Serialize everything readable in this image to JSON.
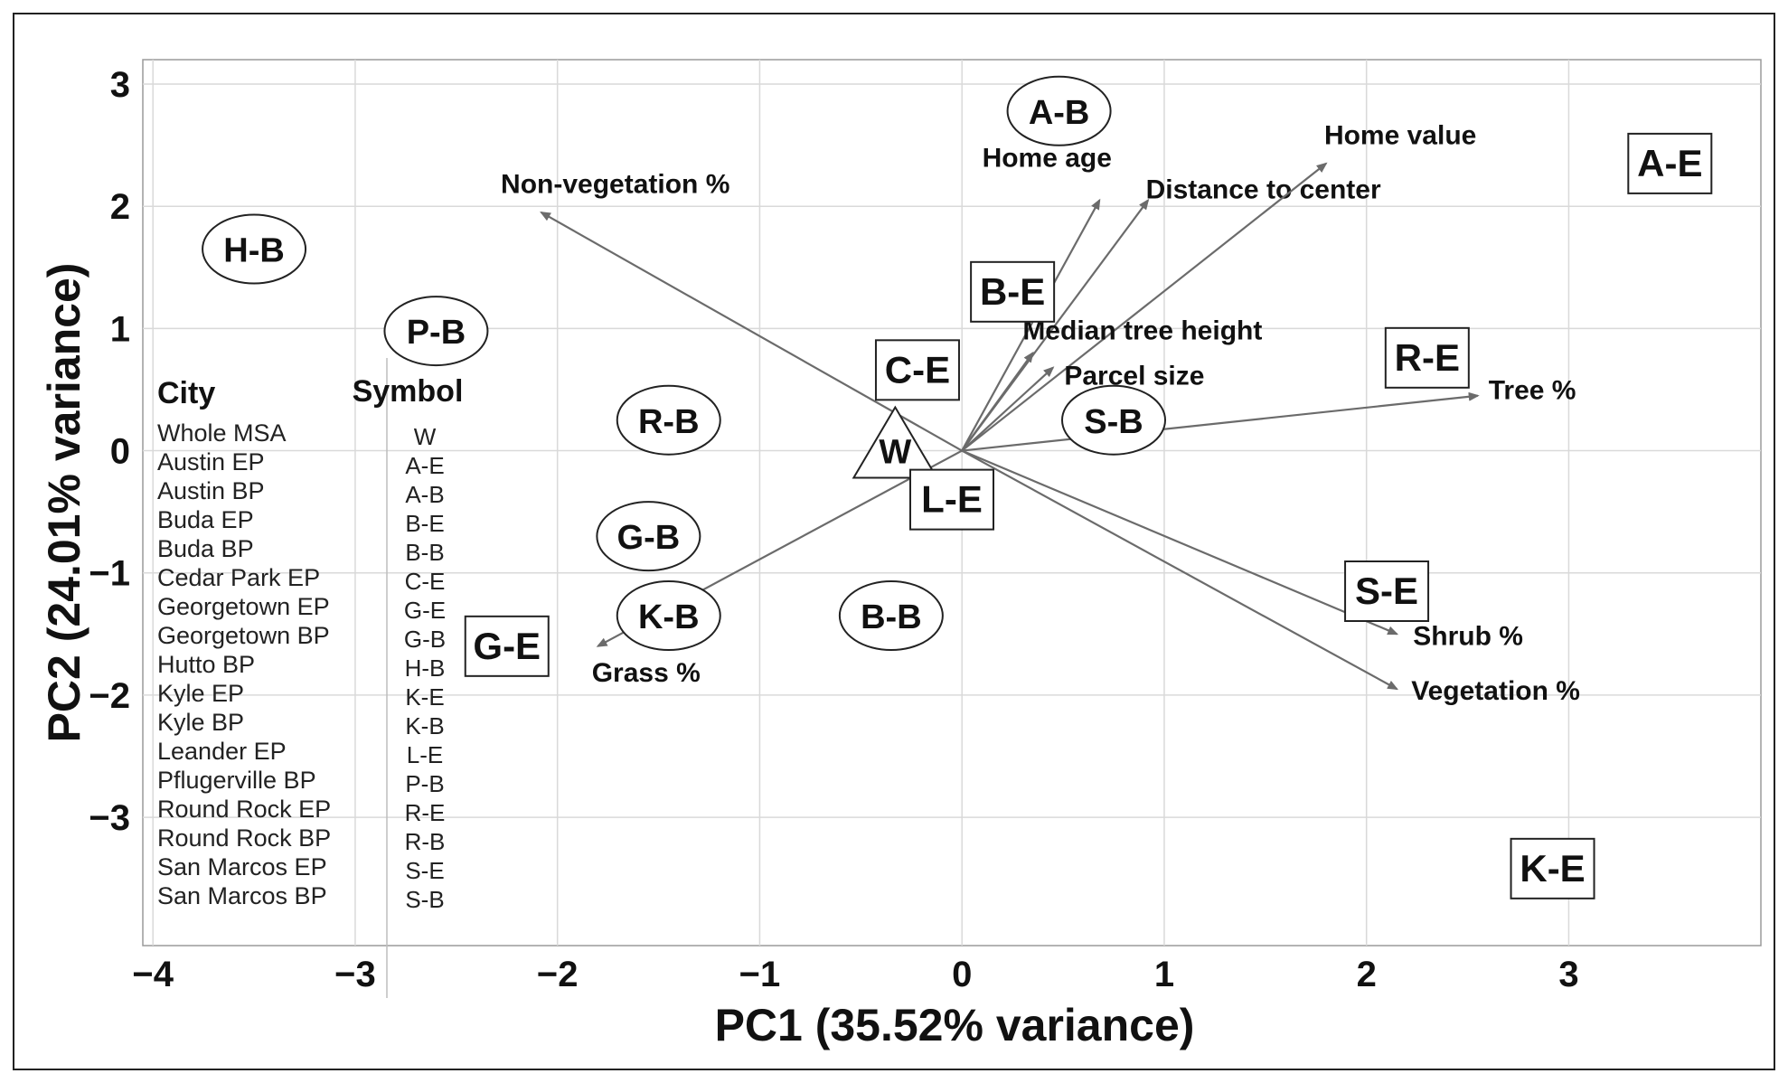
{
  "chart_data": {
    "type": "scatter",
    "subtype": "pca-biplot",
    "xlabel": "PC1 (35.52% variance)",
    "ylabel": "PC2 (24.01% variance)",
    "xlim": [
      -4.05,
      3.95
    ],
    "ylim": [
      -4.05,
      3.2
    ],
    "x_ticks": [
      {
        "value": -4,
        "label": "−4"
      },
      {
        "value": -3,
        "label": "−3"
      },
      {
        "value": -2,
        "label": "−2"
      },
      {
        "value": -1,
        "label": "−1"
      },
      {
        "value": 0,
        "label": "0"
      },
      {
        "value": 1,
        "label": "1"
      },
      {
        "value": 2,
        "label": "2"
      },
      {
        "value": 3,
        "label": "3"
      }
    ],
    "y_ticks": [
      {
        "value": 3,
        "label": "3"
      },
      {
        "value": 2,
        "label": "2"
      },
      {
        "value": 1,
        "label": "1"
      },
      {
        "value": 0,
        "label": "0"
      },
      {
        "value": -1,
        "label": "−1"
      },
      {
        "value": -2,
        "label": "−2"
      },
      {
        "value": -3,
        "label": "−3"
      }
    ],
    "grid": true,
    "points": [
      {
        "label": "A-B",
        "x": 0.48,
        "y": 2.78,
        "shape": "ellipse"
      },
      {
        "label": "A-E",
        "x": 3.5,
        "y": 2.35,
        "shape": "box"
      },
      {
        "label": "H-B",
        "x": -3.5,
        "y": 1.65,
        "shape": "ellipse"
      },
      {
        "label": "B-E",
        "x": 0.25,
        "y": 1.3,
        "shape": "box"
      },
      {
        "label": "P-B",
        "x": -2.6,
        "y": 0.98,
        "shape": "ellipse"
      },
      {
        "label": "C-E",
        "x": -0.22,
        "y": 0.66,
        "shape": "box"
      },
      {
        "label": "R-E",
        "x": 2.3,
        "y": 0.76,
        "shape": "box"
      },
      {
        "label": "R-B",
        "x": -1.45,
        "y": 0.25,
        "shape": "ellipse"
      },
      {
        "label": "S-B",
        "x": 0.75,
        "y": 0.25,
        "shape": "ellipse"
      },
      {
        "label": "W",
        "x": -0.33,
        "y": 0.0,
        "shape": "triangle"
      },
      {
        "label": "L-E",
        "x": -0.05,
        "y": -0.4,
        "shape": "box"
      },
      {
        "label": "G-B",
        "x": -1.55,
        "y": -0.7,
        "shape": "ellipse"
      },
      {
        "label": "S-E",
        "x": 2.1,
        "y": -1.15,
        "shape": "box"
      },
      {
        "label": "K-B",
        "x": -1.45,
        "y": -1.35,
        "shape": "ellipse"
      },
      {
        "label": "B-B",
        "x": -0.35,
        "y": -1.35,
        "shape": "ellipse"
      },
      {
        "label": "G-E",
        "x": -2.25,
        "y": -1.6,
        "shape": "box"
      },
      {
        "label": "K-E",
        "x": 2.92,
        "y": -3.42,
        "shape": "box"
      }
    ],
    "loadings": [
      {
        "name": "Non-vegetation %",
        "x": -2.08,
        "y": 1.95,
        "label_x": -2.28,
        "label_y": 2.05
      },
      {
        "name": "Home age",
        "x": 0.68,
        "y": 2.05,
        "label_x": 0.1,
        "label_y": 2.28
      },
      {
        "name": "Distance to center",
        "x": 0.92,
        "y": 2.05,
        "label_x": 0.9,
        "label_y": 2.05
      },
      {
        "name": "Home value",
        "x": 1.8,
        "y": 2.35,
        "label_x": 1.8,
        "label_y": 2.45
      },
      {
        "name": "Median tree height",
        "x": 0.35,
        "y": 0.8,
        "label_x": 0.3,
        "label_y": 0.85
      },
      {
        "name": "Parcel size",
        "x": 0.45,
        "y": 0.68,
        "label_x": 0.47,
        "label_y": 0.6
      },
      {
        "name": "Tree %",
        "x": 2.55,
        "y": 0.45,
        "label_x": 2.55,
        "label_y": 0.45
      },
      {
        "name": "Shrub %",
        "x": 2.15,
        "y": -1.5,
        "label_x": 2.15,
        "label_y": -1.5
      },
      {
        "name": "Vegetation %",
        "x": 2.15,
        "y": -1.95,
        "label_x": 2.15,
        "label_y": -1.95
      },
      {
        "name": "Grass %",
        "x": -1.8,
        "y": -1.6,
        "label_x": -1.83,
        "label_y": -1.8
      }
    ],
    "legend": {
      "position": "left",
      "header_city": "City",
      "header_symbol": "Symbol",
      "rows": [
        {
          "city": "Whole MSA",
          "symbol": "W"
        },
        {
          "city": "Austin EP",
          "symbol": "A-E"
        },
        {
          "city": "Austin BP",
          "symbol": "A-B"
        },
        {
          "city": "Buda EP",
          "symbol": "B-E"
        },
        {
          "city": "Buda BP",
          "symbol": "B-B"
        },
        {
          "city": "Cedar Park EP",
          "symbol": "C-E"
        },
        {
          "city": "Georgetown EP",
          "symbol": "G-E"
        },
        {
          "city": "Georgetown BP",
          "symbol": "G-B"
        },
        {
          "city": "Hutto BP",
          "symbol": "H-B"
        },
        {
          "city": "Kyle EP",
          "symbol": "K-E"
        },
        {
          "city": "Kyle BP",
          "symbol": "K-B"
        },
        {
          "city": "Leander EP",
          "symbol": "L-E"
        },
        {
          "city": "Pflugerville BP",
          "symbol": "P-B"
        },
        {
          "city": "Round Rock EP",
          "symbol": "R-E"
        },
        {
          "city": "Round Rock BP",
          "symbol": "R-B"
        },
        {
          "city": "San Marcos EP",
          "symbol": "S-E"
        },
        {
          "city": "San Marcos BP",
          "symbol": "S-B"
        }
      ]
    }
  },
  "colors": {
    "arrow": "#6b6b6b",
    "grid": "#d9d9d9",
    "axis": "#555555",
    "text": "#111111"
  }
}
